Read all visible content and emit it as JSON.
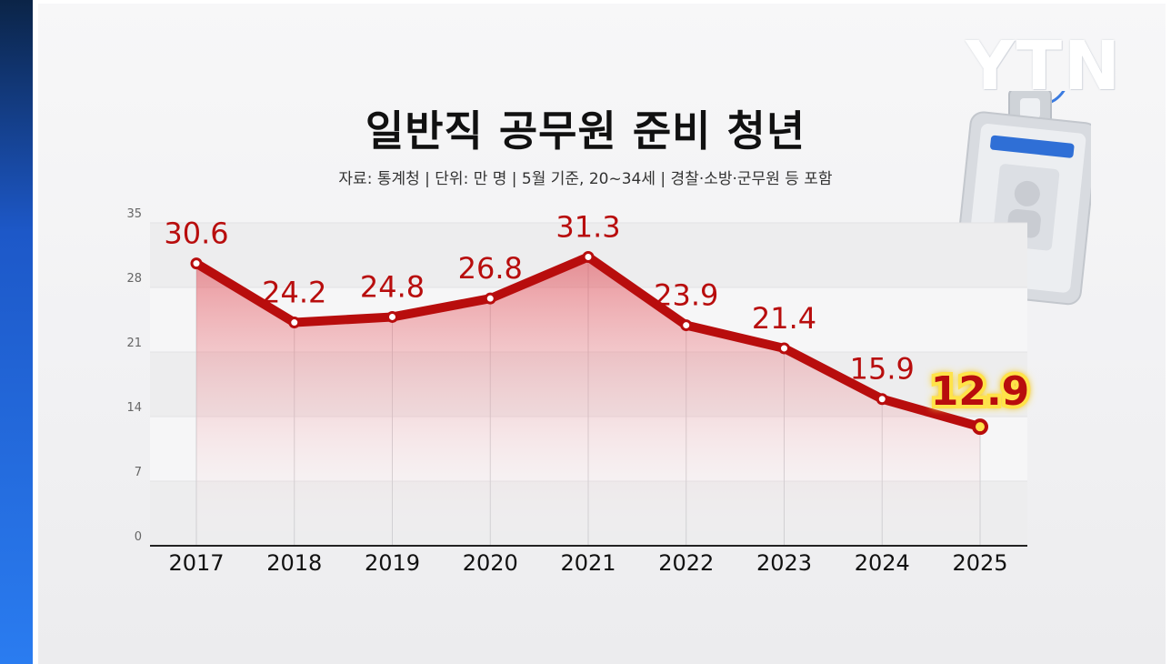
{
  "logo": "YTN",
  "title": "일반직 공무원 준비 청년",
  "source": "자료: 통계청 | 단위: 만 명 | 5월 기준, 20~34세 | 경찰·소방·군무원 등 포함",
  "colors": {
    "line": "#b80d0d",
    "highlight": "#ffe34a",
    "accent_bar": "#1d58c8"
  },
  "chart_data": {
    "type": "line",
    "categories": [
      "2017",
      "2018",
      "2019",
      "2020",
      "2021",
      "2022",
      "2023",
      "2024",
      "2025"
    ],
    "values": [
      30.6,
      24.2,
      24.8,
      26.8,
      31.3,
      23.9,
      21.4,
      15.9,
      12.9
    ],
    "value_labels": [
      "30.6",
      "24.2",
      "24.8",
      "26.8",
      "31.3",
      "23.9",
      "21.4",
      "15.9",
      "12.9"
    ],
    "yticks": [
      "0",
      "7",
      "14",
      "21",
      "28",
      "35"
    ],
    "ylim": [
      0,
      35
    ],
    "highlight_index": 8,
    "title": "일반직 공무원 준비 청년",
    "grid": "banded"
  }
}
